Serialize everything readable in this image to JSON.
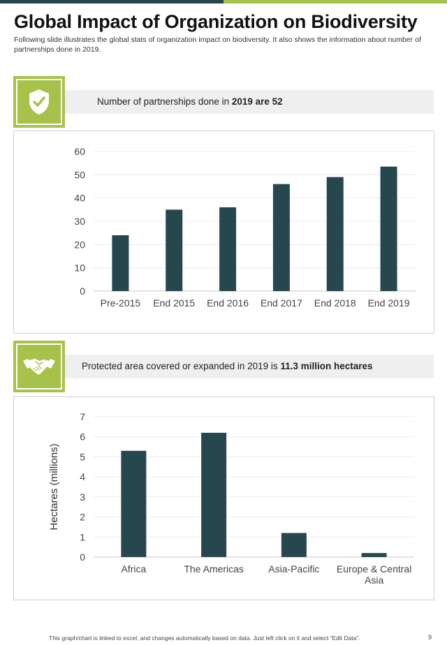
{
  "header": {
    "title": "Global Impact of Organization on Biodiversity",
    "subtitle": "Following slide illustrates the global stats of organization impact on biodiversity. It also shows the information about number of partnerships done in 2019."
  },
  "section1": {
    "icon": "shield-check-icon",
    "banner_prefix": "Number of partnerships done in ",
    "banner_bold": "2019 are 52"
  },
  "section2": {
    "icon": "handshake-icon",
    "banner_prefix": "Protected area covered or expanded in 2019 is ",
    "banner_bold": "11.3 million hectares"
  },
  "colors": {
    "accent": "#a6c24a",
    "bar": "#27474f",
    "banner_bg": "#efefef"
  },
  "chart_data": [
    {
      "type": "bar",
      "categories": [
        "Pre-2015",
        "End 2015",
        "End 2016",
        "End 2017",
        "End 2018",
        "End 2019"
      ],
      "values": [
        24,
        35,
        36,
        46,
        49,
        53.5
      ],
      "title": "",
      "xlabel": "",
      "ylabel": "",
      "ylim": [
        0,
        60
      ],
      "yticks": [
        0,
        10,
        20,
        30,
        40,
        50,
        60
      ],
      "grid": true,
      "color": "#27474f"
    },
    {
      "type": "bar",
      "categories": [
        "Africa",
        "The Americas",
        "Asia-Pacific",
        "Europe & Central Asia"
      ],
      "values": [
        5.3,
        6.2,
        1.2,
        0.2
      ],
      "title": "",
      "xlabel": "",
      "ylabel": "Hectares (millions)",
      "ylim": [
        0,
        7
      ],
      "yticks": [
        0,
        1,
        2,
        3,
        4,
        5,
        6,
        7
      ],
      "grid": true,
      "color": "#27474f"
    }
  ],
  "footer": {
    "note": "This graph/chart is linked to excel, and changes automatically based on data. Just left click on it and select “Edit Data”.",
    "page": "9"
  }
}
